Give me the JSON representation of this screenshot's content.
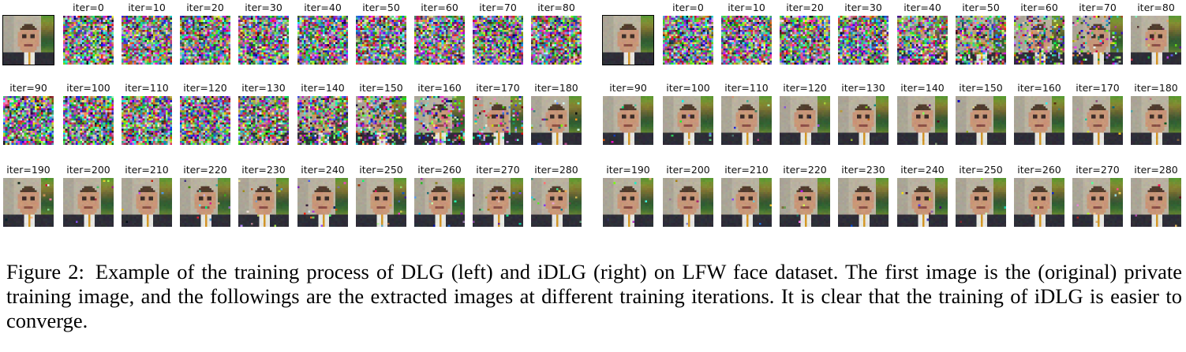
{
  "figure": {
    "number_label": "Figure 2:",
    "caption": "Example of the training process of DLG (left) and iDLG (right) on LFW face dataset. The first image is the (original) private training image, and the followings are the extracted images at different training iterations. It is clear that the training of iDLG is easier to converge."
  },
  "panels": [
    {
      "id": "dlg",
      "rows": [
        [
          "",
          "iter=0",
          "iter=10",
          "iter=20",
          "iter=30",
          "iter=40",
          "iter=50",
          "iter=60",
          "iter=70",
          "iter=80"
        ],
        [
          "iter=90",
          "iter=100",
          "iter=110",
          "iter=120",
          "iter=130",
          "iter=140",
          "iter=150",
          "iter=160",
          "iter=170",
          "iter=180"
        ],
        [
          "iter=190",
          "iter=200",
          "iter=210",
          "iter=220",
          "iter=230",
          "iter=240",
          "iter=250",
          "iter=260",
          "iter=270",
          "iter=280"
        ]
      ]
    },
    {
      "id": "idlg",
      "rows": [
        [
          "",
          "iter=0",
          "iter=10",
          "iter=20",
          "iter=30",
          "iter=40",
          "iter=50",
          "iter=60",
          "iter=70",
          "iter=80"
        ],
        [
          "iter=90",
          "iter=100",
          "iter=110",
          "iter=120",
          "iter=130",
          "iter=140",
          "iter=150",
          "iter=160",
          "iter=170",
          "iter=180"
        ],
        [
          "iter=190",
          "iter=200",
          "iter=210",
          "iter=220",
          "iter=230",
          "iter=240",
          "iter=250",
          "iter=260",
          "iter=270",
          "iter=280"
        ]
      ]
    }
  ]
}
